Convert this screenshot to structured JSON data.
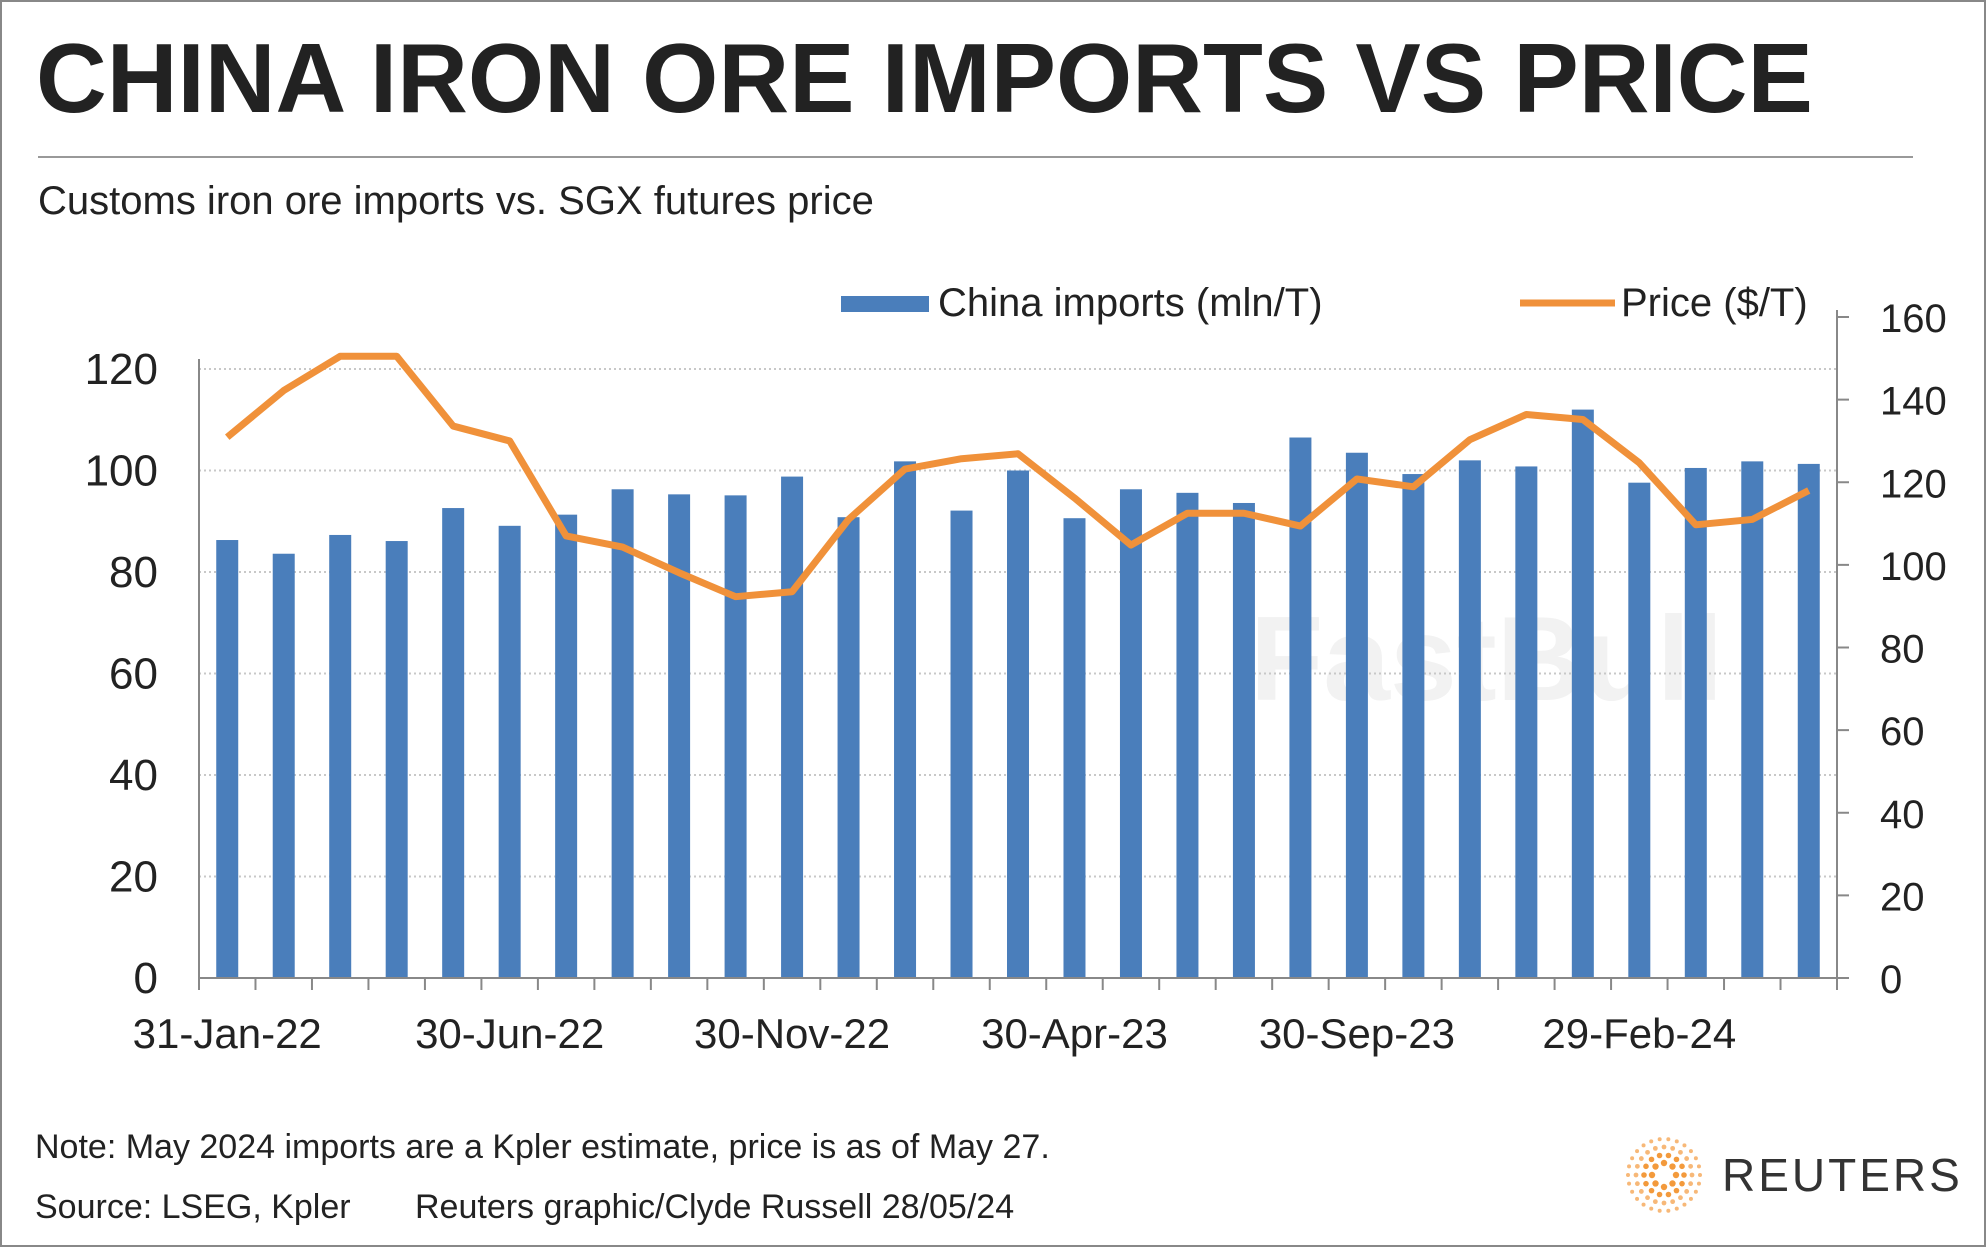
{
  "title": "CHINA IRON ORE IMPORTS VS PRICE",
  "subtitle": "Customs iron ore imports vs. SGX futures price",
  "note": "Note: May 2024 imports are a Kpler estimate, price is as of May 27.",
  "source": "Source: LSEG, Kpler",
  "credit": "Reuters graphic/Clyde Russell 28/05/24",
  "logo_text": "REUTERS",
  "watermark": "FastBull",
  "colors": {
    "bars": "#4a7ebb",
    "line": "#f0913a",
    "grid": "#c8c8c8",
    "text": "#222222"
  },
  "chart_data": {
    "type": "bar+line",
    "x": [
      "Jan-22",
      "Feb-22",
      "Mar-22",
      "Apr-22",
      "May-22",
      "Jun-22",
      "Jul-22",
      "Aug-22",
      "Sep-22",
      "Oct-22",
      "Nov-22",
      "Dec-22",
      "Jan-23",
      "Feb-23",
      "Mar-23",
      "Apr-23",
      "May-23",
      "Jun-23",
      "Jul-23",
      "Aug-23",
      "Sep-23",
      "Oct-23",
      "Nov-23",
      "Dec-23",
      "Jan-24",
      "Feb-24",
      "Mar-24",
      "Apr-24",
      "May-24"
    ],
    "x_tick_labels": [
      "31-Jan-22",
      "30-Jun-22",
      "30-Nov-22",
      "30-Apr-23",
      "30-Sep-23",
      "29-Feb-24"
    ],
    "x_tick_label_positions": [
      0,
      5,
      10,
      15,
      20,
      25
    ],
    "series": [
      {
        "name": "China imports (mln/T)",
        "type": "bar",
        "axis": "left",
        "values": [
          86.3,
          83.6,
          87.3,
          86.1,
          92.6,
          89.1,
          91.3,
          96.3,
          95.3,
          95.1,
          98.8,
          90.8,
          101.8,
          92.1,
          100.0,
          90.6,
          96.3,
          95.6,
          93.6,
          106.5,
          103.5,
          99.3,
          102.0,
          100.8,
          112.0,
          97.6,
          100.5,
          101.8,
          101.3
        ]
      },
      {
        "name": "Price ($/T)",
        "type": "line",
        "axis": "right",
        "values": [
          130.9,
          142.2,
          150.5,
          150.5,
          133.6,
          130.0,
          107.0,
          104.3,
          98.1,
          92.3,
          93.5,
          111.0,
          123.2,
          125.7,
          126.9,
          116.2,
          104.8,
          112.5,
          112.5,
          109.4,
          120.8,
          118.9,
          130.3,
          136.4,
          135.2,
          124.7,
          109.7,
          111.0,
          118.0
        ]
      }
    ],
    "y_left": {
      "lim": [
        0,
        120
      ],
      "ticks": [
        "0",
        "20",
        "40",
        "60",
        "80",
        "100",
        "120"
      ]
    },
    "y_right": {
      "lim": [
        0,
        160
      ],
      "ticks": [
        "0",
        "20",
        "40",
        "60",
        "80",
        "100",
        "120",
        "140",
        "160"
      ]
    },
    "grid": true,
    "legend": "top"
  }
}
